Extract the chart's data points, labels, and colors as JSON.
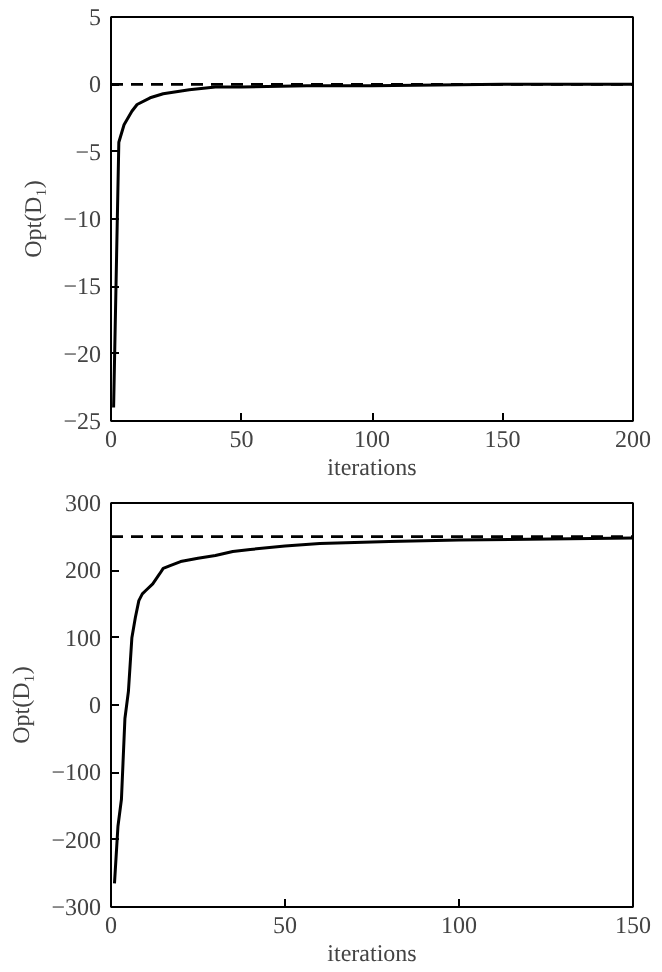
{
  "chart_data": [
    {
      "type": "line",
      "xlabel": "iterations",
      "ylabel": "Opt(D₁)",
      "x": [
        1,
        3,
        5,
        8,
        10,
        15,
        20,
        30,
        40,
        50,
        75,
        100,
        150,
        200
      ],
      "series": [
        {
          "color": "#000000",
          "values": [
            -24,
            -4.3,
            -3,
            -2,
            -1.5,
            -1,
            -0.7,
            -0.4,
            -0.2,
            -0.2,
            -0.1,
            -0.1,
            0,
            0
          ]
        }
      ],
      "xlim": [
        0,
        200
      ],
      "ylim": [
        -25,
        5
      ],
      "xticks": [
        0,
        50,
        100,
        150,
        200
      ],
      "yticks": [
        -25,
        -20,
        -15,
        -10,
        -5,
        0,
        5
      ],
      "ref_lines": [
        {
          "axis": "y",
          "value": 0,
          "line_style": "dashed",
          "color": "#000000"
        }
      ],
      "grid": false,
      "line_style": "solid",
      "marker": "none"
    },
    {
      "type": "line",
      "xlabel": "iterations",
      "ylabel": "Opt(D₁)",
      "x": [
        1,
        2,
        3,
        4,
        5,
        6,
        7,
        8,
        9,
        10,
        12,
        14,
        15,
        17,
        20,
        25,
        30,
        35,
        40,
        50,
        60,
        80,
        100,
        150
      ],
      "series": [
        {
          "color": "#000000",
          "values": [
            -265,
            -180,
            -140,
            -20,
            20,
            100,
            130,
            155,
            165,
            170,
            180,
            195,
            203,
            207,
            213,
            218,
            222,
            228,
            231,
            236,
            240,
            243,
            245,
            248
          ]
        }
      ],
      "xlim": [
        0,
        150
      ],
      "ylim": [
        -300,
        300
      ],
      "xticks": [
        0,
        50,
        100,
        150
      ],
      "yticks": [
        -300,
        -200,
        -100,
        0,
        100,
        200,
        300
      ],
      "ref_lines": [
        {
          "axis": "y",
          "value": 250,
          "line_style": "dashed",
          "color": "#000000"
        }
      ],
      "grid": false,
      "line_style": "solid",
      "marker": "none"
    }
  ]
}
